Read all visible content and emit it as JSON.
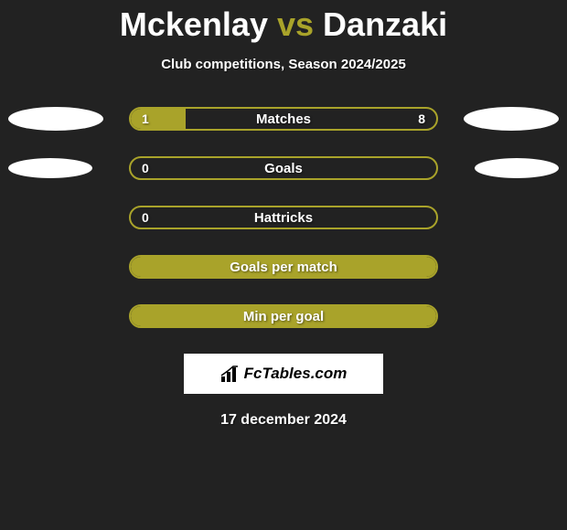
{
  "title": {
    "player1": "Mckenlay",
    "vs": "vs",
    "player2": "Danzaki",
    "p1_color": "#ffffff",
    "vs_color": "#a9a32a",
    "p2_color": "#ffffff",
    "fontsize": 36
  },
  "subtitle": "Club competitions, Season 2024/2025",
  "subtitle_color": "#ffffff",
  "background_color": "#222222",
  "accent_color": "#a9a32a",
  "bar_text_color": "#ffffff",
  "ellipse_color": "#ffffff",
  "rows": [
    {
      "label": "Matches",
      "left_value": "1",
      "right_value": "8",
      "left_fill_pct": 18,
      "right_fill_pct": 0,
      "full_fill": false,
      "show_left_ellipse": true,
      "show_right_ellipse": true,
      "narrow_ellipse": false
    },
    {
      "label": "Goals",
      "left_value": "0",
      "right_value": "",
      "left_fill_pct": 0,
      "right_fill_pct": 0,
      "full_fill": false,
      "show_left_ellipse": true,
      "show_right_ellipse": true,
      "narrow_ellipse": true
    },
    {
      "label": "Hattricks",
      "left_value": "0",
      "right_value": "",
      "left_fill_pct": 0,
      "right_fill_pct": 0,
      "full_fill": false,
      "show_left_ellipse": false,
      "show_right_ellipse": false,
      "narrow_ellipse": false
    },
    {
      "label": "Goals per match",
      "left_value": "",
      "right_value": "",
      "left_fill_pct": 0,
      "right_fill_pct": 0,
      "full_fill": true,
      "show_left_ellipse": false,
      "show_right_ellipse": false,
      "narrow_ellipse": false
    },
    {
      "label": "Min per goal",
      "left_value": "",
      "right_value": "",
      "left_fill_pct": 0,
      "right_fill_pct": 0,
      "full_fill": true,
      "show_left_ellipse": false,
      "show_right_ellipse": false,
      "narrow_ellipse": false
    }
  ],
  "badge": {
    "text": "FcTables.com",
    "background": "#ffffff",
    "text_color": "#000000"
  },
  "date": "17 december 2024",
  "date_color": "#ffffff"
}
